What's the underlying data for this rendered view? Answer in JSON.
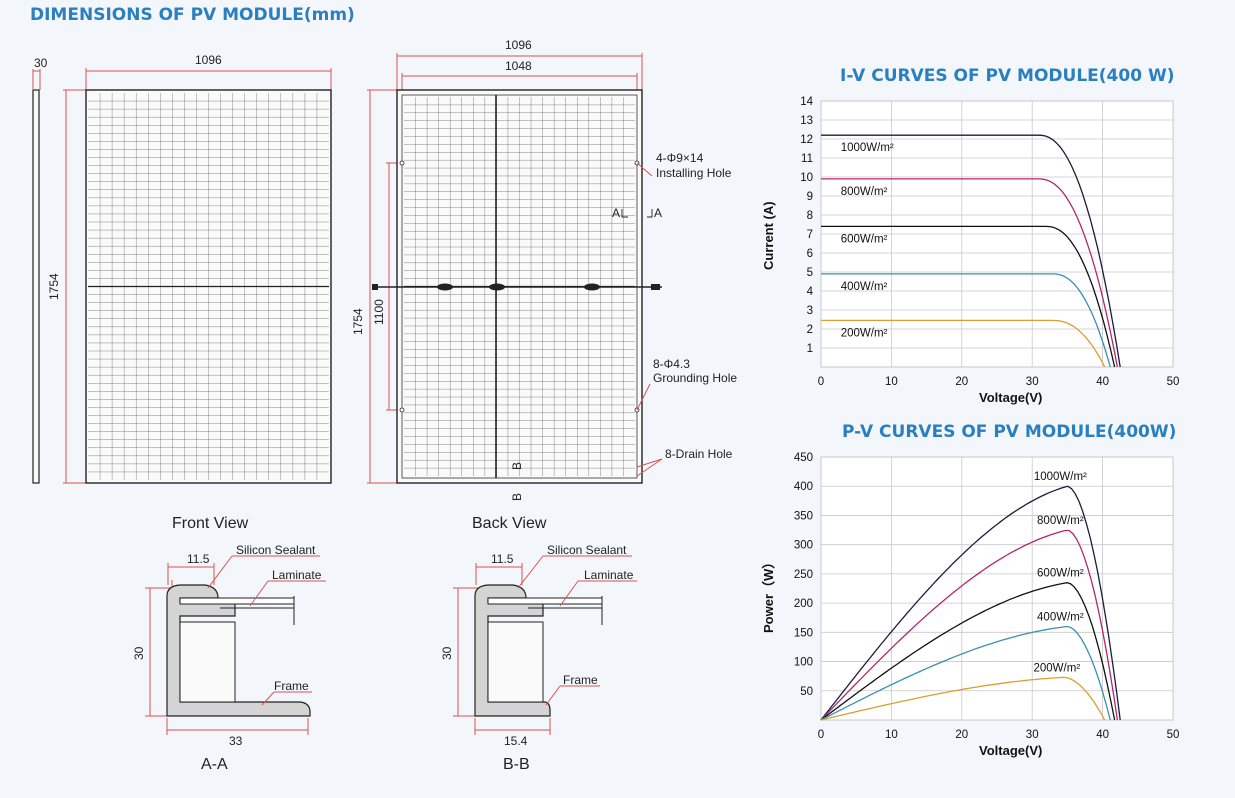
{
  "header": {
    "title": "DIMENSIONS OF PV MODULE(mm)"
  },
  "front_view": {
    "label": "Front View",
    "width": "1096",
    "height": "1754",
    "thickness": "30"
  },
  "back_view": {
    "label": "Back View",
    "width_outer": "1096",
    "width_inner": "1048",
    "height": "1754",
    "hole_span": "1100",
    "callouts": {
      "installing_qty": "4-Φ9×14",
      "installing_name": "Installing Hole",
      "grounding_qty": "8-Φ4.3",
      "grounding_name": "Grounding Hole",
      "drain": "8-Drain Hole"
    },
    "section_a_left": "A",
    "section_a_right": "A",
    "section_b_top": "B",
    "section_b_bottom": "B"
  },
  "sections": {
    "a": {
      "label": "A-A",
      "lip": "11.5",
      "height": "30",
      "width": "33",
      "sealant": "Silicon Sealant",
      "laminate": "Laminate",
      "frame": "Frame"
    },
    "b": {
      "label": "B-B",
      "lip": "11.5",
      "height": "30",
      "width": "15.4",
      "sealant": "Silicon Sealant",
      "laminate": "Laminate",
      "frame": "Frame"
    }
  },
  "chart_data": [
    {
      "type": "line",
      "title": "I-V CURVES OF PV MODULE(400 W)",
      "xlabel": "Voltage(V)",
      "ylabel": "Current (A)",
      "xlim": [
        0,
        50
      ],
      "ylim": [
        0,
        14
      ],
      "xticks": [
        0,
        10,
        20,
        30,
        40,
        50
      ],
      "yticks": [
        1.0,
        2.0,
        3.0,
        4.0,
        5.0,
        6.0,
        7.0,
        8.0,
        9.0,
        10.0,
        11.0,
        12.0,
        13.0,
        14.0
      ],
      "grid": true,
      "series": [
        {
          "name": "1000W/m²",
          "color": "#1c1c3c",
          "isc": 12.2,
          "voc": 42.5,
          "knee": 31
        },
        {
          "name": "800W/m²",
          "color": "#b5256e",
          "isc": 9.9,
          "voc": 42.1,
          "knee": 31
        },
        {
          "name": "600W/m²",
          "color": "#111111",
          "isc": 7.4,
          "voc": 41.7,
          "knee": 32
        },
        {
          "name": "400W/m²",
          "color": "#3a8fb4",
          "isc": 4.9,
          "voc": 41.1,
          "knee": 33
        },
        {
          "name": "200W/m²",
          "color": "#d9a030",
          "isc": 2.45,
          "voc": 40.3,
          "knee": 33
        }
      ]
    },
    {
      "type": "line",
      "title": "P-V CURVES OF PV MODULE(400W)",
      "xlabel": "Voltage(V)",
      "ylabel": "Power（W）",
      "xlim": [
        0,
        50
      ],
      "ylim": [
        0,
        450
      ],
      "xticks": [
        0,
        10,
        20,
        30,
        40,
        50
      ],
      "yticks": [
        50,
        100,
        150,
        200,
        250,
        300,
        350,
        400,
        450
      ],
      "grid": true,
      "series": [
        {
          "name": "1000W/m²",
          "color": "#1c1c3c",
          "pmax": 400,
          "vmp": 35,
          "voc": 42.5
        },
        {
          "name": "800W/m²",
          "color": "#b5256e",
          "pmax": 325,
          "vmp": 35,
          "voc": 42.1
        },
        {
          "name": "600W/m²",
          "color": "#111111",
          "pmax": 235,
          "vmp": 35,
          "voc": 41.7
        },
        {
          "name": "400W/m²",
          "color": "#3a8fb4",
          "pmax": 160,
          "vmp": 35,
          "voc": 41.1
        },
        {
          "name": "200W/m²",
          "color": "#d9a030",
          "pmax": 73,
          "vmp": 34.5,
          "voc": 40.3
        }
      ]
    }
  ]
}
